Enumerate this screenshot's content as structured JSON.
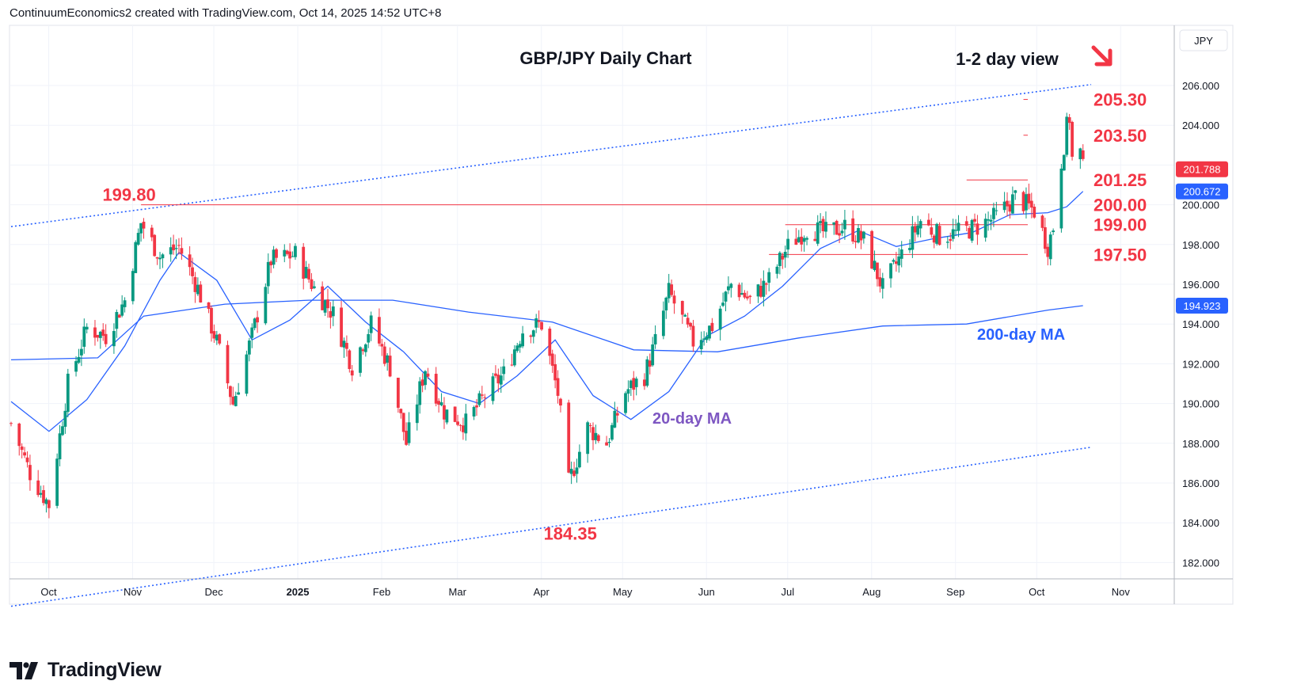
{
  "header": {
    "attribution": "ContinuumEconomics2 created with TradingView.com, Oct 14, 2025 14:52 UTC+8"
  },
  "brand": {
    "name": "TradingView",
    "logo_icon": "tradingview-logo-icon"
  },
  "colors": {
    "up": "#089981",
    "down": "#f23645",
    "level": "#f23645",
    "ma": "#2962ff",
    "ma20_label": "#7e57c2",
    "ma200_label": "#2962ff",
    "text": "#131722",
    "grid": "#f0f3fa"
  },
  "chart_data": {
    "type": "candlestick",
    "title": "GBP/JPY Daily Chart",
    "subtitle": "1-2 day view",
    "bias_icon": "down-arrow-icon",
    "currency": "JPY",
    "ylim": [
      181.0,
      209.0
    ],
    "y_ticks": [
      182.0,
      184.0,
      186.0,
      188.0,
      190.0,
      192.0,
      194.0,
      196.0,
      198.0,
      200.0,
      202.0,
      204.0,
      206.0
    ],
    "x_ticks": [
      "Oct",
      "Nov",
      "Dec",
      "2025",
      "Feb",
      "Mar",
      "Apr",
      "May",
      "Jun",
      "Jul",
      "Aug",
      "Sep",
      "Oct",
      "Nov"
    ],
    "x_dates": [
      "2024-09-13",
      "2025-10-17"
    ],
    "price_label": 201.788,
    "ma20_price_label": 200.672,
    "ma200_price_label": 194.923,
    "levels": [
      {
        "label": "205.30",
        "value": 205.3,
        "from": "2025-09-22",
        "to": "2025-10-17"
      },
      {
        "label": "203.50",
        "value": 203.5,
        "from": "2025-09-22",
        "to": "2025-10-17"
      },
      {
        "label": "201.25",
        "value": 201.25,
        "from": "2025-09-01",
        "to": "2025-10-17"
      },
      {
        "label": "200.00",
        "value": 200.0,
        "from": "2024-10-31",
        "to": "2025-10-17"
      },
      {
        "label": "199.00",
        "value": 199.0,
        "from": "2025-06-26",
        "to": "2025-10-17"
      },
      {
        "label": "197.50",
        "value": 197.5,
        "from": "2025-06-20",
        "to": "2025-10-17"
      }
    ],
    "annotations": [
      {
        "label": "199.80",
        "date": "2024-10-31",
        "value": 199.8
      },
      {
        "label": "184.35",
        "date": "2025-04-07",
        "value": 184.35
      }
    ],
    "ma_labels": {
      "ma20": "20-day MA",
      "ma200": "200-day MA"
    },
    "channel": {
      "upper": {
        "from": {
          "date": "2024-09-13",
          "value": 198.9
        },
        "to": {
          "date": "2025-10-17",
          "value": 206.05
        }
      },
      "lower": {
        "from": {
          "date": "2024-09-13",
          "value": 179.8
        },
        "to": {
          "date": "2025-10-17",
          "value": 187.8
        }
      }
    },
    "anchors": [
      [
        "2024-09-13",
        189.0
      ],
      [
        "2024-09-20",
        186.5
      ],
      [
        "2024-09-27",
        184.9
      ],
      [
        "2024-10-04",
        191.0
      ],
      [
        "2024-10-11",
        193.8
      ],
      [
        "2024-10-18",
        193.4
      ],
      [
        "2024-10-25",
        195.2
      ],
      [
        "2024-10-31",
        199.1
      ],
      [
        "2024-11-07",
        197.4
      ],
      [
        "2024-11-14",
        197.9
      ],
      [
        "2024-11-21",
        195.8
      ],
      [
        "2024-11-28",
        193.1
      ],
      [
        "2024-12-04",
        190.0
      ],
      [
        "2024-12-11",
        193.4
      ],
      [
        "2024-12-18",
        197.2
      ],
      [
        "2024-12-27",
        197.5
      ],
      [
        "2025-01-03",
        195.8
      ],
      [
        "2025-01-10",
        194.5
      ],
      [
        "2025-01-17",
        191.9
      ],
      [
        "2025-01-24",
        194.0
      ],
      [
        "2025-01-31",
        191.8
      ],
      [
        "2025-02-06",
        188.0
      ],
      [
        "2025-02-13",
        191.8
      ],
      [
        "2025-02-20",
        189.6
      ],
      [
        "2025-02-28",
        189.0
      ],
      [
        "2025-03-07",
        190.4
      ],
      [
        "2025-03-14",
        191.5
      ],
      [
        "2025-03-21",
        193.7
      ],
      [
        "2025-03-28",
        194.0
      ],
      [
        "2025-04-03",
        190.5
      ],
      [
        "2025-04-07",
        186.0
      ],
      [
        "2025-04-14",
        188.8
      ],
      [
        "2025-04-21",
        188.0
      ],
      [
        "2025-04-28",
        190.6
      ],
      [
        "2025-05-05",
        191.4
      ],
      [
        "2025-05-09",
        193.1
      ],
      [
        "2025-05-14",
        195.6
      ],
      [
        "2025-05-23",
        193.1
      ],
      [
        "2025-05-30",
        193.9
      ],
      [
        "2025-06-06",
        196.0
      ],
      [
        "2025-06-13",
        195.2
      ],
      [
        "2025-06-20",
        196.2
      ],
      [
        "2025-06-27",
        197.9
      ],
      [
        "2025-07-04",
        198.8
      ],
      [
        "2025-07-11",
        198.6
      ],
      [
        "2025-07-18",
        198.9
      ],
      [
        "2025-07-25",
        198.2
      ],
      [
        "2025-08-01",
        195.8
      ],
      [
        "2025-08-08",
        197.5
      ],
      [
        "2025-08-15",
        199.2
      ],
      [
        "2025-08-22",
        198.4
      ],
      [
        "2025-08-29",
        198.6
      ],
      [
        "2025-09-05",
        198.9
      ],
      [
        "2025-09-12",
        199.4
      ],
      [
        "2025-09-19",
        200.4
      ],
      [
        "2025-09-26",
        199.7
      ],
      [
        "2025-10-01",
        197.9
      ],
      [
        "2025-10-03",
        198.9
      ],
      [
        "2025-10-06",
        202.2
      ],
      [
        "2025-10-08",
        203.9
      ],
      [
        "2025-10-09",
        204.4
      ],
      [
        "2025-10-10",
        202.3
      ],
      [
        "2025-10-13",
        202.6
      ],
      [
        "2025-10-14",
        201.788
      ]
    ],
    "ma20": [
      [
        "2024-09-13",
        190.1
      ],
      [
        "2024-09-27",
        188.6
      ],
      [
        "2024-10-11",
        190.2
      ],
      [
        "2024-10-25",
        192.9
      ],
      [
        "2024-11-07",
        196.2
      ],
      [
        "2024-11-14",
        197.6
      ],
      [
        "2024-11-28",
        196.2
      ],
      [
        "2024-12-11",
        193.2
      ],
      [
        "2024-12-25",
        194.2
      ],
      [
        "2025-01-08",
        195.9
      ],
      [
        "2025-01-22",
        194.1
      ],
      [
        "2025-02-05",
        192.6
      ],
      [
        "2025-02-19",
        190.6
      ],
      [
        "2025-03-05",
        190.0
      ],
      [
        "2025-03-19",
        191.4
      ],
      [
        "2025-04-02",
        193.2
      ],
      [
        "2025-04-16",
        190.4
      ],
      [
        "2025-04-30",
        189.2
      ],
      [
        "2025-05-14",
        190.6
      ],
      [
        "2025-05-28",
        193.4
      ],
      [
        "2025-06-11",
        194.4
      ],
      [
        "2025-06-25",
        195.9
      ],
      [
        "2025-07-09",
        197.8
      ],
      [
        "2025-07-23",
        198.7
      ],
      [
        "2025-08-06",
        197.9
      ],
      [
        "2025-08-20",
        198.3
      ],
      [
        "2025-09-03",
        198.6
      ],
      [
        "2025-09-17",
        199.5
      ],
      [
        "2025-10-01",
        199.6
      ],
      [
        "2025-10-08",
        199.9
      ],
      [
        "2025-10-14",
        200.672
      ]
    ],
    "ma200": [
      [
        "2024-09-13",
        192.2
      ],
      [
        "2024-10-15",
        192.3
      ],
      [
        "2024-11-01",
        194.4
      ],
      [
        "2024-12-01",
        195.0
      ],
      [
        "2025-01-01",
        195.2
      ],
      [
        "2025-02-01",
        195.2
      ],
      [
        "2025-03-01",
        194.6
      ],
      [
        "2025-04-01",
        194.1
      ],
      [
        "2025-05-01",
        192.7
      ],
      [
        "2025-06-01",
        192.6
      ],
      [
        "2025-07-01",
        193.3
      ],
      [
        "2025-08-01",
        193.9
      ],
      [
        "2025-09-01",
        194.0
      ],
      [
        "2025-10-01",
        194.7
      ],
      [
        "2025-10-14",
        194.923
      ]
    ]
  }
}
